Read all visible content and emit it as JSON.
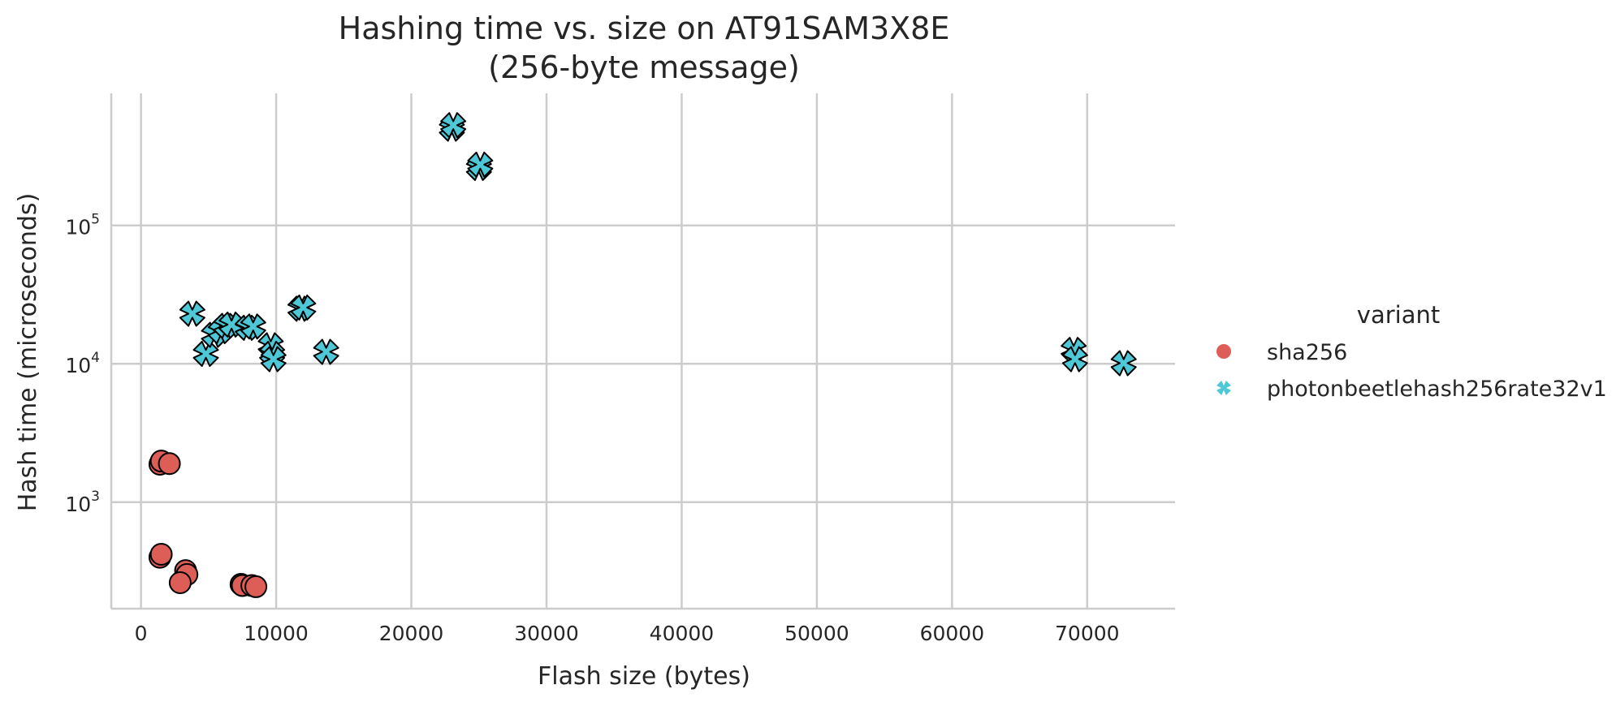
{
  "chart_data": {
    "type": "scatter",
    "title_lines": [
      "Hashing time vs. size on AT91SAM3X8E",
      "(256-byte message)"
    ],
    "xlabel": "Flash size (bytes)",
    "ylabel": "Hash time (microseconds)",
    "x_scale": "linear",
    "y_scale": "log",
    "xlim": [
      -2200,
      76500
    ],
    "ylim": [
      170,
      900000
    ],
    "x_ticks": [
      0,
      10000,
      20000,
      30000,
      40000,
      50000,
      60000,
      70000
    ],
    "x_tick_labels": [
      "0",
      "10000",
      "20000",
      "30000",
      "40000",
      "50000",
      "60000",
      "70000"
    ],
    "y_ticks": [
      1000,
      10000,
      100000
    ],
    "y_tick_labels": [
      {
        "base": "10",
        "exp": "3"
      },
      {
        "base": "10",
        "exp": "4"
      },
      {
        "base": "10",
        "exp": "5"
      }
    ],
    "grid": true,
    "legend": {
      "title": "variant",
      "position": "right"
    },
    "series": [
      {
        "name": "sha256",
        "marker": "circle",
        "color": "#dd5e57",
        "points": [
          {
            "x": 1400,
            "y": 1880
          },
          {
            "x": 1500,
            "y": 1980
          },
          {
            "x": 2100,
            "y": 1900
          },
          {
            "x": 1400,
            "y": 400
          },
          {
            "x": 1500,
            "y": 420
          },
          {
            "x": 3300,
            "y": 320
          },
          {
            "x": 3400,
            "y": 300
          },
          {
            "x": 2900,
            "y": 262
          },
          {
            "x": 7400,
            "y": 255
          },
          {
            "x": 7500,
            "y": 250
          },
          {
            "x": 8200,
            "y": 250
          },
          {
            "x": 8500,
            "y": 245
          }
        ]
      },
      {
        "name": "photonbeetlehash256rate32v1",
        "marker": "x",
        "color": "#4ec8d6",
        "points": [
          {
            "x": 23000,
            "y": 500000
          },
          {
            "x": 23100,
            "y": 530000
          },
          {
            "x": 25000,
            "y": 260000
          },
          {
            "x": 25100,
            "y": 275000
          },
          {
            "x": 3800,
            "y": 23000
          },
          {
            "x": 4800,
            "y": 11800
          },
          {
            "x": 5400,
            "y": 16200
          },
          {
            "x": 5900,
            "y": 17200
          },
          {
            "x": 6300,
            "y": 18800
          },
          {
            "x": 6700,
            "y": 19200
          },
          {
            "x": 7900,
            "y": 18200
          },
          {
            "x": 8300,
            "y": 18600
          },
          {
            "x": 9600,
            "y": 13600
          },
          {
            "x": 9700,
            "y": 11800
          },
          {
            "x": 9800,
            "y": 10800
          },
          {
            "x": 11800,
            "y": 25000
          },
          {
            "x": 12000,
            "y": 25500
          },
          {
            "x": 13700,
            "y": 12200
          },
          {
            "x": 69000,
            "y": 12600
          },
          {
            "x": 69100,
            "y": 10800
          },
          {
            "x": 72700,
            "y": 10100
          }
        ]
      }
    ]
  }
}
